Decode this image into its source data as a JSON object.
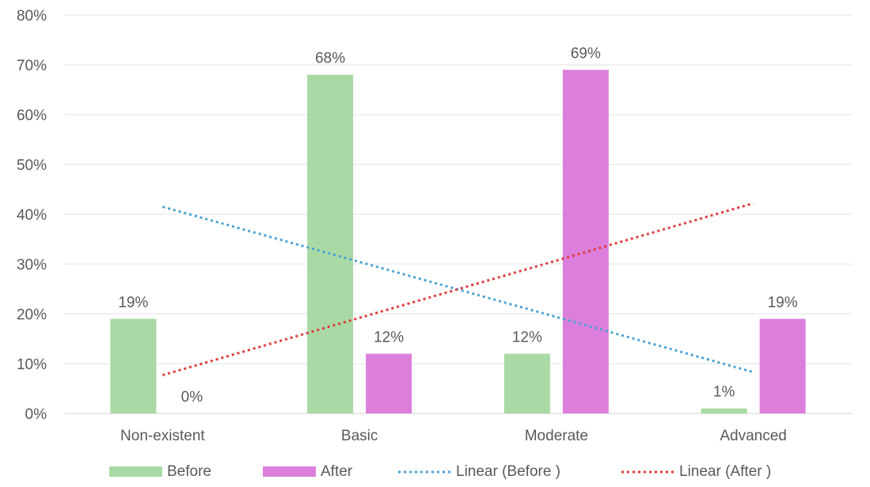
{
  "chart_data": {
    "type": "bar",
    "title": "",
    "xlabel": "",
    "ylabel": "",
    "ylim": [
      0,
      80
    ],
    "y_ticks": [
      "0%",
      "10%",
      "20%",
      "30%",
      "40%",
      "50%",
      "60%",
      "70%",
      "80%"
    ],
    "y_tick_values": [
      0,
      10,
      20,
      30,
      40,
      50,
      60,
      70,
      80
    ],
    "categories": [
      "Non-existent",
      "Basic",
      "Moderate",
      "Advanced"
    ],
    "series": [
      {
        "name": "Before",
        "values": [
          19,
          68,
          12,
          1
        ],
        "labels": [
          "19%",
          "68%",
          "12%",
          "1%"
        ],
        "color": "#A9D9A4"
      },
      {
        "name": "After",
        "values": [
          0,
          12,
          69,
          19
        ],
        "labels": [
          "0%",
          "12%",
          "69%",
          "19%"
        ],
        "color": "#DC7FDC"
      }
    ],
    "trendlines": [
      {
        "name": "Linear (Before )",
        "of_series": "Before",
        "start": 41.5,
        "end": 8.3,
        "color": "#4BA3D3",
        "style": "dotted"
      },
      {
        "name": "Linear (After )",
        "of_series": "After",
        "start": 7.7,
        "end": 42.2,
        "color": "#E23B3B",
        "style": "dotted"
      }
    ],
    "grid": true,
    "legend_position": "bottom"
  }
}
